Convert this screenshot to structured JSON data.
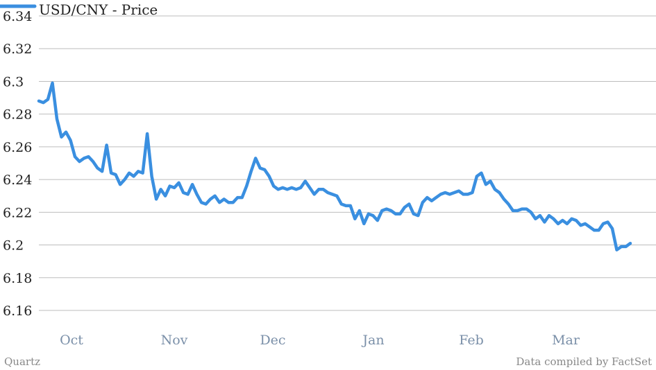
{
  "chart_data": {
    "type": "line",
    "title": "",
    "xlabel": "",
    "ylabel": "",
    "ylim": [
      6.16,
      6.34
    ],
    "yticks": [
      "6.34",
      "6.32",
      "6.3",
      "6.28",
      "6.26",
      "6.24",
      "6.22",
      "6.2",
      "6.18",
      "6.16"
    ],
    "xticks": [
      "Oct",
      "Nov",
      "Dec",
      "Jan",
      "Feb",
      "Mar"
    ],
    "grid": true,
    "legend_position": "top-left",
    "series": [
      {
        "name": "USD/CNY - Price",
        "color": "#3a8fe0",
        "values": [
          6.288,
          6.287,
          6.289,
          6.299,
          6.277,
          6.266,
          6.269,
          6.264,
          6.254,
          6.251,
          6.253,
          6.254,
          6.251,
          6.247,
          6.245,
          6.261,
          6.244,
          6.243,
          6.237,
          6.24,
          6.244,
          6.242,
          6.245,
          6.244,
          6.268,
          6.242,
          6.228,
          6.234,
          6.23,
          6.236,
          6.235,
          6.238,
          6.232,
          6.231,
          6.237,
          6.231,
          6.226,
          6.225,
          6.228,
          6.23,
          6.226,
          6.228,
          6.226,
          6.226,
          6.229,
          6.229,
          6.236,
          6.245,
          6.253,
          6.247,
          6.246,
          6.242,
          6.236,
          6.234,
          6.235,
          6.234,
          6.235,
          6.234,
          6.235,
          6.239,
          6.235,
          6.231,
          6.234,
          6.234,
          6.232,
          6.231,
          6.23,
          6.225,
          6.224,
          6.224,
          6.216,
          6.221,
          6.213,
          6.219,
          6.218,
          6.215,
          6.221,
          6.222,
          6.221,
          6.219,
          6.219,
          6.223,
          6.225,
          6.219,
          6.218,
          6.226,
          6.229,
          6.227,
          6.229,
          6.231,
          6.232,
          6.231,
          6.232,
          6.233,
          6.231,
          6.231,
          6.232,
          6.242,
          6.244,
          6.237,
          6.239,
          6.234,
          6.232,
          6.228,
          6.225,
          6.221,
          6.221,
          6.222,
          6.222,
          6.22,
          6.216,
          6.218,
          6.214,
          6.218,
          6.216,
          6.213,
          6.215,
          6.213,
          6.216,
          6.215,
          6.212,
          6.213,
          6.211,
          6.209,
          6.209,
          6.213,
          6.214,
          6.21,
          6.197,
          6.199,
          6.199,
          6.201
        ]
      }
    ]
  },
  "footer": {
    "source_left": "Quartz",
    "source_right": "Data compiled by FactSet"
  }
}
